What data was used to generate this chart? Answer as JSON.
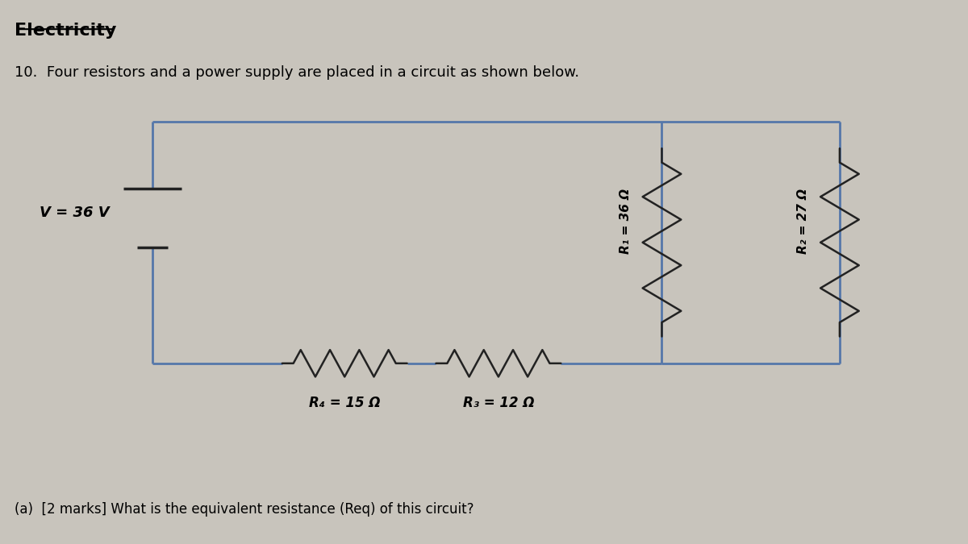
{
  "bg_color": "#c8c4bc",
  "title": "Electricity",
  "question_text": "10.  Four resistors and a power supply are placed in a circuit as shown below.",
  "footer_text": "(a)  [2 marks] What is the equivalent resistance (Req) of this circuit?",
  "circuit_color": "#5577aa",
  "resistor_color": "#222222",
  "label_V": "V = 36 V",
  "label_R1": "R₁ = 36 Ω",
  "label_R2": "R₂ = 27 Ω",
  "label_R3": "R₃ = 12 Ω",
  "label_R4": "R₄ = 15 Ω"
}
